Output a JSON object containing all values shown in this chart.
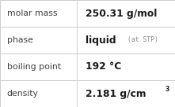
{
  "rows": [
    {
      "label": "molar mass",
      "value": "250.31 g/mol",
      "type": "plain"
    },
    {
      "label": "phase",
      "value": "liquid",
      "suffix": "(at STP)",
      "type": "suffix"
    },
    {
      "label": "boiling point",
      "value": "192 °C",
      "type": "plain"
    },
    {
      "label": "density",
      "value": "2.181 g/cm",
      "superscript": "3",
      "type": "super"
    }
  ],
  "col_split": 0.44,
  "background_color": "#ffffff",
  "border_color": "#cccccc",
  "label_color": "#404040",
  "value_color": "#1a1a1a",
  "suffix_color": "#888888",
  "label_fontsize": 7.8,
  "value_fontsize": 8.8,
  "suffix_fontsize": 5.8,
  "super_fontsize": 5.5,
  "label_font_family": "DejaVu Sans",
  "value_font_family": "DejaVu Sans"
}
